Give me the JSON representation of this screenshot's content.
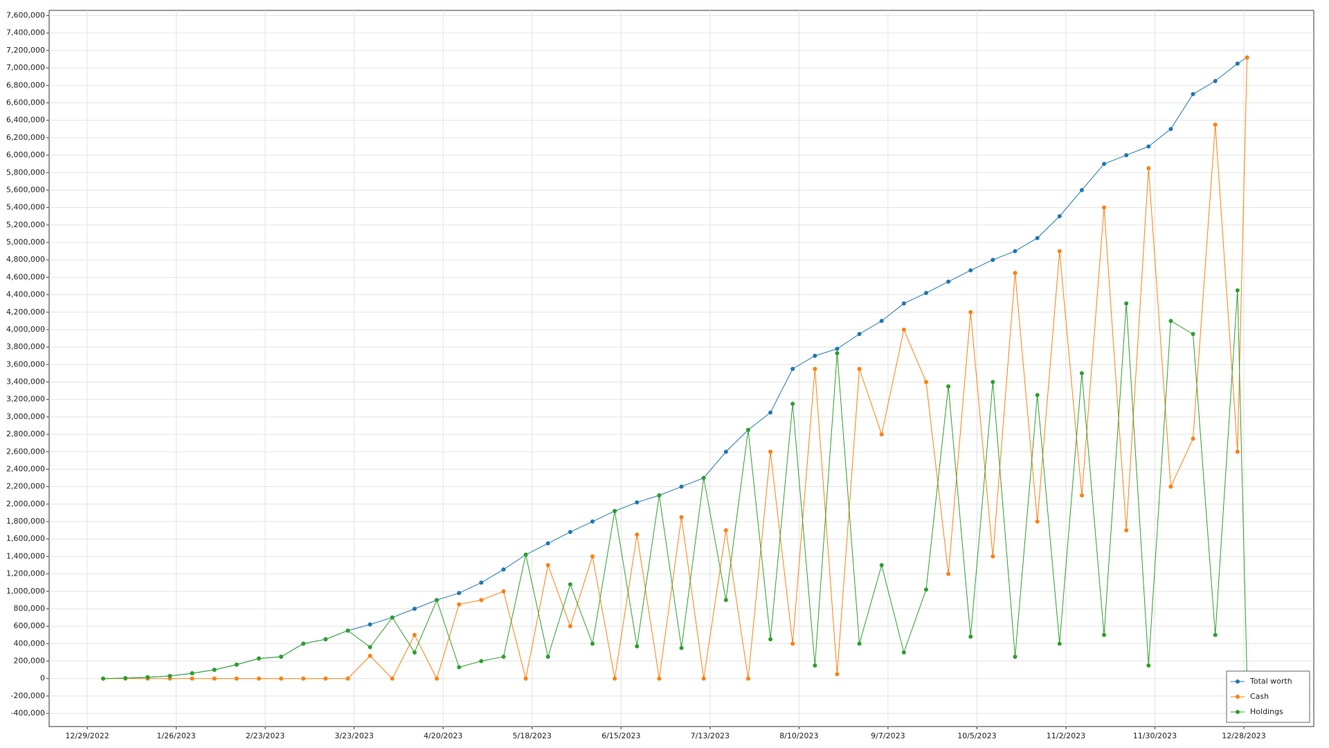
{
  "chart_data": {
    "type": "line",
    "grid": true,
    "legend": "lower right",
    "xlim": [
      "2022-12-17",
      "2024-01-19"
    ],
    "xticks": [
      {
        "value": "2022-12-29",
        "label": "12/29/2022"
      },
      {
        "value": "2023-01-26",
        "label": "1/26/2023"
      },
      {
        "value": "2023-02-23",
        "label": "2/23/2023"
      },
      {
        "value": "2023-03-23",
        "label": "3/23/2023"
      },
      {
        "value": "2023-04-20",
        "label": "4/20/2023"
      },
      {
        "value": "2023-05-18",
        "label": "5/18/2023"
      },
      {
        "value": "2023-06-15",
        "label": "6/15/2023"
      },
      {
        "value": "2023-07-13",
        "label": "7/13/2023"
      },
      {
        "value": "2023-08-10",
        "label": "8/10/2023"
      },
      {
        "value": "2023-09-07",
        "label": "9/7/2023"
      },
      {
        "value": "2023-10-05",
        "label": "10/5/2023"
      },
      {
        "value": "2023-11-02",
        "label": "11/2/2023"
      },
      {
        "value": "2023-11-30",
        "label": "11/30/2023"
      },
      {
        "value": "2023-12-28",
        "label": "12/28/2023"
      }
    ],
    "ylim": [
      -550000,
      7660000
    ],
    "yticks": [
      {
        "value": -400000,
        "label": "-400,000"
      },
      {
        "value": -200000,
        "label": "-200,000"
      },
      0,
      {
        "value": 200000,
        "label": "200,000"
      },
      {
        "value": 400000,
        "label": "400,000"
      },
      {
        "value": 600000,
        "label": "600,000"
      },
      {
        "value": 800000,
        "label": "800,000"
      },
      {
        "value": 1000000,
        "label": "1,000,000"
      },
      {
        "value": 1200000,
        "label": "1,200,000"
      },
      {
        "value": 1400000,
        "label": "1,400,000"
      },
      {
        "value": 1600000,
        "label": "1,600,000"
      },
      {
        "value": 1800000,
        "label": "1,800,000"
      },
      {
        "value": 2000000,
        "label": "2,000,000"
      },
      {
        "value": 2200000,
        "label": "2,200,000"
      },
      {
        "value": 2400000,
        "label": "2,400,000"
      },
      {
        "value": 2600000,
        "label": "2,600,000"
      },
      {
        "value": 2800000,
        "label": "2,800,000"
      },
      {
        "value": 3000000,
        "label": "3,000,000"
      },
      {
        "value": 3200000,
        "label": "3,200,000"
      },
      {
        "value": 3400000,
        "label": "3,400,000"
      },
      {
        "value": 3600000,
        "label": "3,600,000"
      },
      {
        "value": 3800000,
        "label": "3,800,000"
      },
      {
        "value": 4000000,
        "label": "4,000,000"
      },
      {
        "value": 4200000,
        "label": "4,200,000"
      },
      {
        "value": 4400000,
        "label": "4,400,000"
      },
      {
        "value": 4600000,
        "label": "4,600,000"
      },
      {
        "value": 4800000,
        "label": "4,800,000"
      },
      {
        "value": 5000000,
        "label": "5,000,000"
      },
      {
        "value": 5200000,
        "label": "5,200,000"
      },
      {
        "value": 5400000,
        "label": "5,400,000"
      },
      {
        "value": 5600000,
        "label": "5,600,000"
      },
      {
        "value": 5800000,
        "label": "5,800,000"
      },
      {
        "value": 6000000,
        "label": "6,000,000"
      },
      {
        "value": 6200000,
        "label": "6,200,000"
      },
      {
        "value": 6400000,
        "label": "6,400,000"
      },
      {
        "value": 6600000,
        "label": "6,600,000"
      },
      {
        "value": 6800000,
        "label": "6,800,000"
      },
      {
        "value": 7000000,
        "label": "7,000,000"
      },
      {
        "value": 7200000,
        "label": "7,200,000"
      },
      {
        "value": 7400000,
        "label": "7,400,000"
      },
      {
        "value": 7600000,
        "label": "7,600,000"
      }
    ],
    "x": [
      "2023-01-03",
      "2023-01-10",
      "2023-01-17",
      "2023-01-24",
      "2023-01-31",
      "2023-02-07",
      "2023-02-14",
      "2023-02-21",
      "2023-02-28",
      "2023-03-07",
      "2023-03-14",
      "2023-03-21",
      "2023-03-28",
      "2023-04-04",
      "2023-04-11",
      "2023-04-18",
      "2023-04-25",
      "2023-05-02",
      "2023-05-09",
      "2023-05-16",
      "2023-05-23",
      "2023-05-30",
      "2023-06-06",
      "2023-06-13",
      "2023-06-20",
      "2023-06-27",
      "2023-07-04",
      "2023-07-11",
      "2023-07-18",
      "2023-07-25",
      "2023-08-01",
      "2023-08-08",
      "2023-08-15",
      "2023-08-22",
      "2023-08-29",
      "2023-09-05",
      "2023-09-12",
      "2023-09-19",
      "2023-09-26",
      "2023-10-03",
      "2023-10-10",
      "2023-10-17",
      "2023-10-24",
      "2023-10-31",
      "2023-11-07",
      "2023-11-14",
      "2023-11-21",
      "2023-11-28",
      "2023-12-05",
      "2023-12-12",
      "2023-12-19",
      "2023-12-26",
      "2023-12-29"
    ],
    "series": [
      {
        "name": "Total worth",
        "color": "#1f77b4",
        "values": [
          0,
          5000,
          15000,
          30000,
          60000,
          100000,
          160000,
          230000,
          250000,
          400000,
          450000,
          550000,
          620000,
          700000,
          800000,
          900000,
          980000,
          1100000,
          1250000,
          1420000,
          1550000,
          1680000,
          1800000,
          1920000,
          2020000,
          2100000,
          2200000,
          2300000,
          2600000,
          2850000,
          3050000,
          3550000,
          3700000,
          3780000,
          3950000,
          4100000,
          4300000,
          4420000,
          4550000,
          4680000,
          4800000,
          4900000,
          5050000,
          5300000,
          5600000,
          5900000,
          6000000,
          6100000,
          6300000,
          6700000,
          6850000,
          7050000,
          7120000
        ]
      },
      {
        "name": "Cash",
        "color": "#ff7f0e",
        "values": [
          0,
          0,
          0,
          0,
          0,
          0,
          0,
          0,
          0,
          0,
          0,
          0,
          260000,
          0,
          500000,
          0,
          850000,
          900000,
          1000000,
          0,
          1300000,
          600000,
          1400000,
          0,
          1650000,
          0,
          1850000,
          0,
          1700000,
          0,
          2600000,
          400000,
          3550000,
          50000,
          3550000,
          2800000,
          4000000,
          3400000,
          1200000,
          4200000,
          1400000,
          4650000,
          1800000,
          4900000,
          2100000,
          5400000,
          1700000,
          5850000,
          2200000,
          2750000,
          6350000,
          2600000,
          7120000
        ]
      },
      {
        "name": "Holdings",
        "color": "#2ca02c",
        "values": [
          0,
          5000,
          15000,
          30000,
          60000,
          100000,
          160000,
          230000,
          250000,
          400000,
          450000,
          550000,
          360000,
          700000,
          300000,
          900000,
          130000,
          200000,
          250000,
          1420000,
          250000,
          1080000,
          400000,
          1920000,
          370000,
          2100000,
          350000,
          2300000,
          900000,
          2850000,
          450000,
          3150000,
          150000,
          3730000,
          400000,
          1300000,
          300000,
          1020000,
          3350000,
          480000,
          3400000,
          250000,
          3250000,
          400000,
          3500000,
          500000,
          4300000,
          150000,
          4100000,
          3950000,
          500000,
          4450000,
          0
        ]
      }
    ]
  }
}
